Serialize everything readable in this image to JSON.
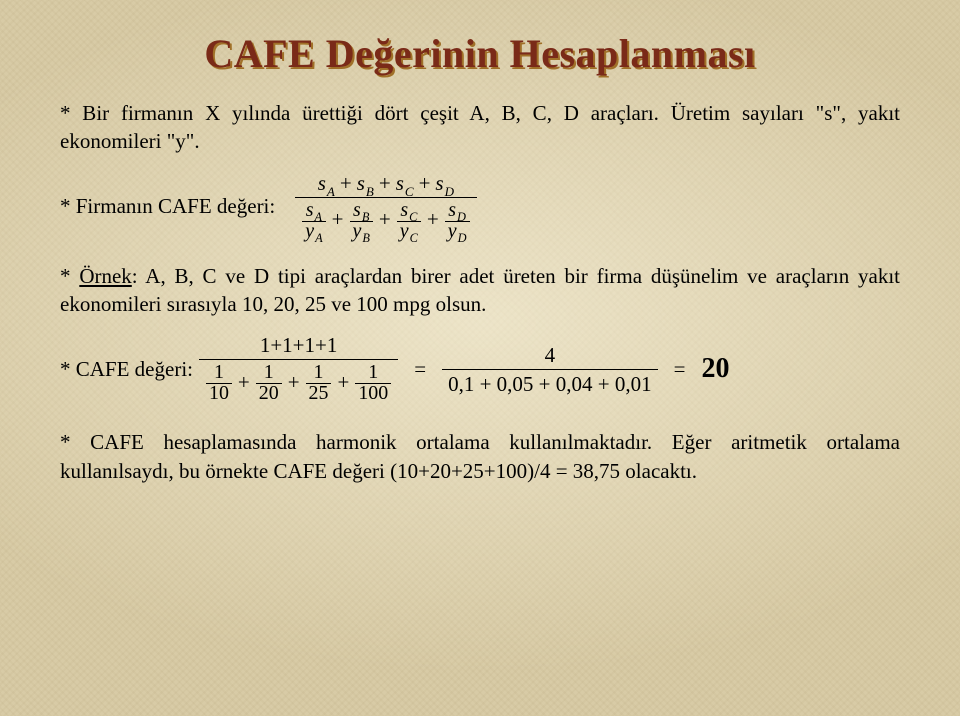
{
  "title": "CAFE Değerinin Hesaplanması",
  "p1": "* Bir firmanın X yılında ürettiği dört çeşit A, B, C, D araçları. Üretim sayıları \"s\", yakıt ekonomileri \"y\".",
  "firm_label": "* Firmanın CAFE değeri:",
  "firm_formula": {
    "num_terms": [
      "s",
      "s",
      "s",
      "s"
    ],
    "num_subs": [
      "A",
      "B",
      "C",
      "D"
    ],
    "den_terms": [
      {
        "n": "s",
        "ns": "A",
        "d": "y",
        "ds": "A"
      },
      {
        "n": "s",
        "ns": "B",
        "d": "y",
        "ds": "B"
      },
      {
        "n": "s",
        "ns": "C",
        "d": "y",
        "ds": "C"
      },
      {
        "n": "s",
        "ns": "D",
        "d": "y",
        "ds": "D"
      }
    ]
  },
  "p2_pre": "* ",
  "p2_under": "Örnek",
  "p2_rest": ": A, B, C ve D tipi araçlardan birer adet üreten bir firma düşünelim ve araçların yakıt ekonomileri sırasıyla 10, 20, 25 ve 100 mpg olsun.",
  "cafe_label": "* CAFE değeri:",
  "ex": {
    "num": "1+1+1+1",
    "den_vals": [
      "1",
      "1",
      "1",
      "1"
    ],
    "den_denoms": [
      "10",
      "20",
      "25",
      "100"
    ],
    "mid_num": "4",
    "mid_den": "0,1 + 0,05 + 0,04 + 0,01",
    "result": "20"
  },
  "p3": "* CAFE hesaplamasında harmonik ortalama kullanılmaktadır. Eğer aritmetik ortalama kullanılsaydı, bu örnekte CAFE değeri (10+20+25+100)/4 = 38,75 olacaktı."
}
